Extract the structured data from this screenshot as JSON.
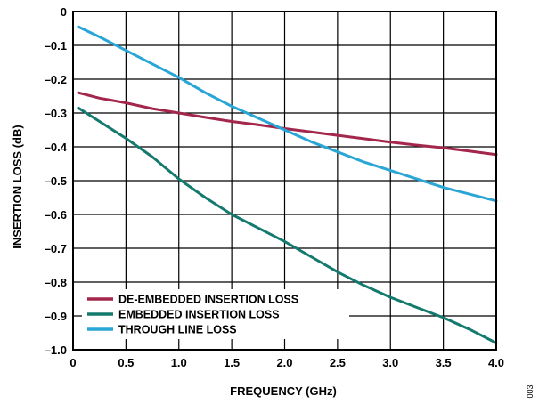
{
  "figure_id": "003",
  "chart_data": {
    "type": "line",
    "xlabel": "FREQUENCY (GHz)",
    "ylabel": "INSERTION LOSS (dB)",
    "xlim": [
      0,
      4.0
    ],
    "ylim": [
      -1.0,
      0
    ],
    "xticks": [
      0,
      0.5,
      1.0,
      1.5,
      2.0,
      2.5,
      3.0,
      3.5,
      4.0
    ],
    "xtick_labels": [
      "0",
      "0.5",
      "1.0",
      "1.5",
      "2.0",
      "2.5",
      "3.0",
      "3.5",
      "4.0"
    ],
    "yticks": [
      0,
      -0.1,
      -0.2,
      -0.3,
      -0.4,
      -0.5,
      -0.6,
      -0.7,
      -0.8,
      -0.9,
      -1.0
    ],
    "ytick_labels": [
      "0",
      "–0.1",
      "–0.2",
      "–0.3",
      "–0.4",
      "–0.5",
      "–0.6",
      "–0.7",
      "–0.8",
      "–0.9",
      "–1.0"
    ],
    "grid": true,
    "legend_position": "bottom-left",
    "x": [
      0.05,
      0.25,
      0.5,
      0.75,
      1.0,
      1.25,
      1.5,
      1.75,
      2.0,
      2.25,
      2.5,
      2.75,
      3.0,
      3.25,
      3.5,
      3.75,
      4.0
    ],
    "series": [
      {
        "name": "DE-EMBEDDED INSERTION LOSS",
        "color": "#a3264c",
        "values": [
          -0.24,
          -0.256,
          -0.27,
          -0.287,
          -0.3,
          -0.313,
          -0.325,
          -0.335,
          -0.346,
          -0.356,
          -0.366,
          -0.376,
          -0.386,
          -0.395,
          -0.403,
          -0.413,
          -0.423
        ]
      },
      {
        "name": "EMBEDDED INSERTION LOSS",
        "color": "#157a6e",
        "values": [
          -0.285,
          -0.325,
          -0.375,
          -0.43,
          -0.495,
          -0.55,
          -0.6,
          -0.64,
          -0.68,
          -0.725,
          -0.77,
          -0.81,
          -0.845,
          -0.875,
          -0.905,
          -0.94,
          -0.98
        ]
      },
      {
        "name": "THROUGH LINE LOSS",
        "color": "#2aa6d6",
        "values": [
          -0.045,
          -0.075,
          -0.115,
          -0.155,
          -0.195,
          -0.24,
          -0.28,
          -0.315,
          -0.35,
          -0.385,
          -0.415,
          -0.445,
          -0.47,
          -0.495,
          -0.52,
          -0.54,
          -0.56
        ]
      }
    ]
  }
}
